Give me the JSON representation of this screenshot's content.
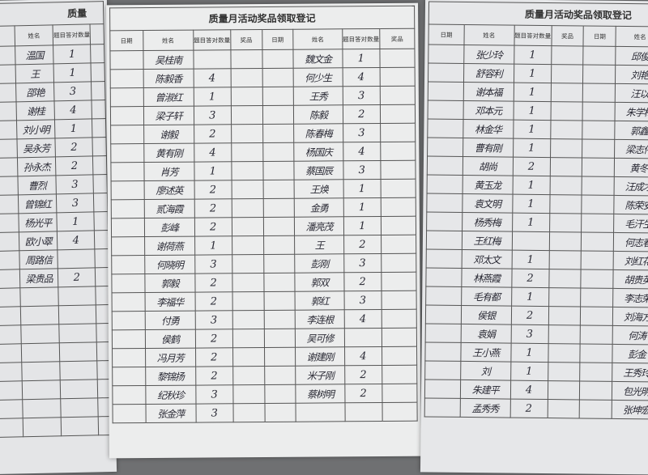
{
  "headers": {
    "title": "质量月活动奖品领取登记",
    "title_partial": "质量",
    "date": "日期",
    "name": "姓名",
    "count": "题目答对数量",
    "prize": "奖品"
  },
  "left_sheet": {
    "rows": [
      {
        "name": "温国",
        "count": "1"
      },
      {
        "name": "王",
        "count": "1"
      },
      {
        "name": "邵艳",
        "count": "3"
      },
      {
        "name": "谢桂",
        "count": "4"
      },
      {
        "name": "刘小明",
        "count": "1"
      },
      {
        "name": "吴永芳",
        "count": "2"
      },
      {
        "name": "孙永杰",
        "count": "2"
      },
      {
        "name": "曹烈",
        "count": "3"
      },
      {
        "name": "曾锦红",
        "count": "3"
      },
      {
        "name": "杨光平",
        "count": "1"
      },
      {
        "name": "欧小翠",
        "count": "4"
      },
      {
        "name": "周路信",
        "count": ""
      },
      {
        "name": "梁贵品",
        "count": "2"
      },
      {
        "name": "",
        "count": ""
      },
      {
        "name": "",
        "count": ""
      },
      {
        "name": "",
        "count": ""
      },
      {
        "name": "",
        "count": ""
      },
      {
        "name": "",
        "count": ""
      },
      {
        "name": "",
        "count": ""
      },
      {
        "name": "",
        "count": ""
      },
      {
        "name": "",
        "count": ""
      }
    ]
  },
  "middle_sheet": {
    "left": [
      {
        "name": "吴桂南",
        "count": ""
      },
      {
        "name": "陈毅香",
        "count": "4"
      },
      {
        "name": "曾淑红",
        "count": "1"
      },
      {
        "name": "梁子轩",
        "count": "3"
      },
      {
        "name": "谢毅",
        "count": "2"
      },
      {
        "name": "黄有刚",
        "count": "4"
      },
      {
        "name": "肖芳",
        "count": "1"
      },
      {
        "name": "廖述英",
        "count": "2"
      },
      {
        "name": "贰海霞",
        "count": "2"
      },
      {
        "name": "彭峰",
        "count": "2"
      },
      {
        "name": "谢荷燕",
        "count": "1"
      },
      {
        "name": "何晓明",
        "count": "3"
      },
      {
        "name": "郭毅",
        "count": "2"
      },
      {
        "name": "李福华",
        "count": "2"
      },
      {
        "name": "付勇",
        "count": "3"
      },
      {
        "name": "侯鹤",
        "count": "2"
      },
      {
        "name": "冯月芳",
        "count": "2"
      },
      {
        "name": "黎锦扬",
        "count": "2"
      },
      {
        "name": "纪秋珍",
        "count": "3"
      },
      {
        "name": "张金萍",
        "count": "3"
      }
    ],
    "right": [
      {
        "name": "魏文金",
        "count": "1"
      },
      {
        "name": "何少生",
        "count": "4"
      },
      {
        "name": "王秀",
        "count": "3"
      },
      {
        "name": "陈毅",
        "count": "2"
      },
      {
        "name": "陈春梅",
        "count": "3"
      },
      {
        "name": "杨国庆",
        "count": "4"
      },
      {
        "name": "蔡国辰",
        "count": "3"
      },
      {
        "name": "王焕",
        "count": "1"
      },
      {
        "name": "金勇",
        "count": "1"
      },
      {
        "name": "潘亮茂",
        "count": "1"
      },
      {
        "name": "王",
        "count": "2"
      },
      {
        "name": "彭刚",
        "count": "3"
      },
      {
        "name": "郭双",
        "count": "2"
      },
      {
        "name": "郭红",
        "count": "3"
      },
      {
        "name": "李连根",
        "count": "4"
      },
      {
        "name": "吴可修",
        "count": ""
      },
      {
        "name": "谢建刚",
        "count": "4"
      },
      {
        "name": "米子刚",
        "count": "2"
      },
      {
        "name": "蔡树明",
        "count": "2"
      },
      {
        "name": "",
        "count": ""
      }
    ]
  },
  "right_sheet": {
    "left": [
      {
        "name": "张少玲",
        "count": "1"
      },
      {
        "name": "舒容利",
        "count": "1"
      },
      {
        "name": "谢本福",
        "count": "1"
      },
      {
        "name": "邓本元",
        "count": "1"
      },
      {
        "name": "林金华",
        "count": "1"
      },
      {
        "name": "曹有刚",
        "count": "1"
      },
      {
        "name": "胡尚",
        "count": "2"
      },
      {
        "name": "黄玉龙",
        "count": "1"
      },
      {
        "name": "袁文明",
        "count": "1"
      },
      {
        "name": "杨秀梅",
        "count": "1"
      },
      {
        "name": "王红梅",
        "count": ""
      },
      {
        "name": "邓太文",
        "count": "1"
      },
      {
        "name": "林燕霞",
        "count": "2"
      },
      {
        "name": "毛有都",
        "count": "1"
      },
      {
        "name": "侯银",
        "count": "2"
      },
      {
        "name": "袁娟",
        "count": "3"
      },
      {
        "name": "王小燕",
        "count": "1"
      },
      {
        "name": "刘",
        "count": "1"
      },
      {
        "name": "朱建平",
        "count": "4"
      },
      {
        "name": "孟秀秀",
        "count": "2"
      }
    ],
    "right": [
      {
        "name": "邱俊"
      },
      {
        "name": "刘艳"
      },
      {
        "name": "汪以"
      },
      {
        "name": "朱学梅"
      },
      {
        "name": "郭鑫"
      },
      {
        "name": "梁志伟"
      },
      {
        "name": "黄冬"
      },
      {
        "name": "汪成才"
      },
      {
        "name": "陈荣安"
      },
      {
        "name": "毛汗生"
      },
      {
        "name": "何志春"
      },
      {
        "name": "刘红花"
      },
      {
        "name": "胡贵英"
      },
      {
        "name": "李志荣"
      },
      {
        "name": "刘海方"
      },
      {
        "name": "何涛"
      },
      {
        "name": "彭金"
      },
      {
        "name": "王秀玲"
      },
      {
        "name": "包光明"
      },
      {
        "name": "张坤宏"
      }
    ]
  }
}
